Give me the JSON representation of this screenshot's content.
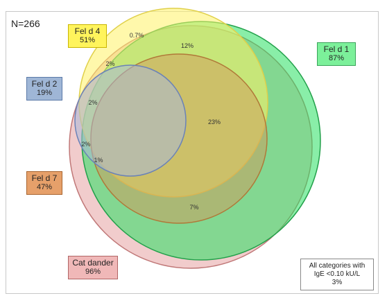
{
  "n_label": "N=266",
  "sets": {
    "feld1": {
      "name": "Fel d 1",
      "pct": "87%",
      "fill": "#28e060",
      "stroke": "#22a04a"
    },
    "feld2": {
      "name": "Fel d 2",
      "pct": "19%",
      "fill": "#a9b8d8",
      "stroke": "#6a82b8"
    },
    "feld4": {
      "name": "Fel d 4",
      "pct": "51%",
      "fill": "#fff266",
      "stroke": "#e0d04a"
    },
    "feld7": {
      "name": "Fel d 7",
      "pct": "47%",
      "fill": "#d29a5a",
      "stroke": "#b07838"
    },
    "cat": {
      "name": "Cat dander",
      "pct": "96%",
      "fill": "#e8aaaa",
      "stroke": "#c07878"
    }
  },
  "negative": {
    "line1": "All categories with",
    "line2": "IgE <0.10 kU/L",
    "pct": "3%"
  },
  "regions": {
    "r07": "0.7%",
    "r12": "12%",
    "r2a": "2%",
    "r2b": "2%",
    "r2c": "2%",
    "r1": "1%",
    "r23": "23%",
    "r7": "7%"
  }
}
